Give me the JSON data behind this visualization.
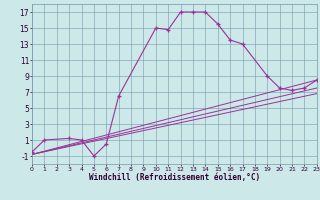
{
  "xlabel": "Windchill (Refroidissement éolien,°C)",
  "background_color": "#cce8e8",
  "line_color": "#993399",
  "xlim": [
    0,
    23
  ],
  "ylim": [
    -2,
    18
  ],
  "xticks": [
    0,
    1,
    2,
    3,
    4,
    5,
    6,
    7,
    8,
    9,
    10,
    11,
    12,
    13,
    14,
    15,
    16,
    17,
    18,
    19,
    20,
    21,
    22,
    23
  ],
  "yticks": [
    -1,
    1,
    3,
    5,
    7,
    9,
    11,
    13,
    15,
    17
  ],
  "main_curve_x": [
    0,
    1,
    3,
    4,
    5,
    6,
    7,
    10,
    11,
    12,
    13,
    14,
    15,
    16,
    17,
    19,
    20,
    21,
    22,
    23
  ],
  "main_curve_y": [
    -0.5,
    1.0,
    1.2,
    1.0,
    -1.0,
    0.5,
    6.5,
    15.0,
    14.8,
    17.0,
    17.0,
    17.0,
    15.5,
    13.5,
    13.0,
    9.0,
    7.5,
    7.2,
    7.5,
    8.5
  ],
  "line1_x": [
    0,
    23
  ],
  "line1_y": [
    -0.8,
    8.5
  ],
  "line2_x": [
    0,
    23
  ],
  "line2_y": [
    -0.8,
    7.5
  ],
  "line3_x": [
    0,
    23
  ],
  "line3_y": [
    -0.8,
    6.8
  ]
}
